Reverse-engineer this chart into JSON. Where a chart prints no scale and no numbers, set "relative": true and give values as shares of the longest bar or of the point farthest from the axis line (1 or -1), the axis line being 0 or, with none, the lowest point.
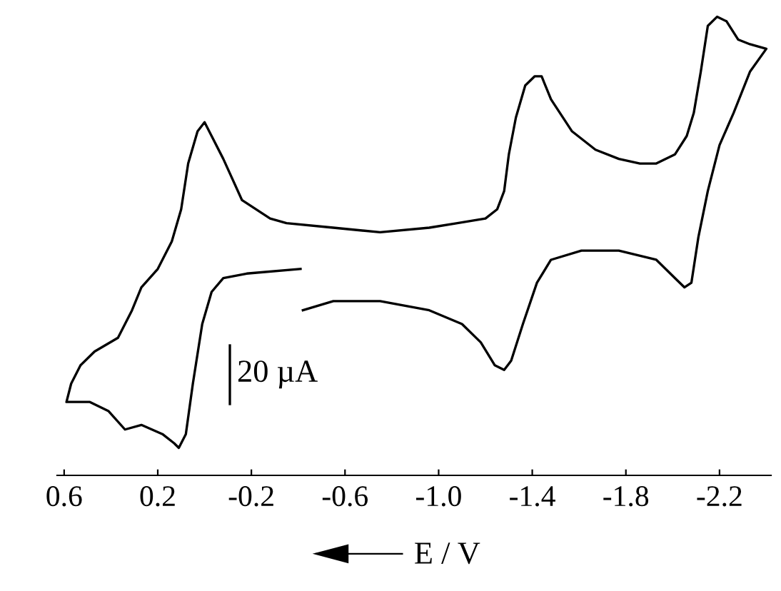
{
  "chart_data": {
    "type": "line",
    "relative": true,
    "xlabel": "E / V",
    "xlim": [
      0.63,
      -2.42
    ],
    "xticks": [
      {
        "value": 0.6,
        "label": "0.6"
      },
      {
        "value": 0.2,
        "label": "0.2"
      },
      {
        "value": -0.2,
        "label": "-0.2"
      },
      {
        "value": -0.6,
        "label": "-0.6"
      },
      {
        "value": -1.0,
        "label": "-1.0"
      },
      {
        "value": -1.4,
        "label": "-1.4"
      },
      {
        "value": -1.8,
        "label": "-1.8"
      },
      {
        "value": -2.2,
        "label": "-2.2"
      }
    ],
    "tick_labels": "x",
    "grid": false,
    "legend": false,
    "marker": "none",
    "line_style": "solid",
    "annotations": [
      "20 µA"
    ],
    "series": [
      {
        "color": "#000000",
        "x": [
          -0.42,
          -0.55,
          -0.75,
          -0.96,
          -1.1,
          -1.18,
          -1.24,
          -1.28,
          -1.31,
          -1.36,
          -1.42,
          -1.48,
          -1.61,
          -1.77,
          -1.93,
          -2.01,
          -2.05,
          -2.08,
          -2.11,
          -2.15,
          -2.2,
          -2.26,
          -2.33,
          -2.4,
          -2.33,
          -2.28,
          -2.23,
          -2.19,
          -2.15,
          -2.12,
          -2.09,
          -2.06,
          -2.01,
          -1.93,
          -1.86,
          -1.77,
          -1.67,
          -1.57,
          -1.48,
          -1.44,
          -1.41,
          -1.37,
          -1.33,
          -1.3,
          -1.28,
          -1.25,
          -1.2,
          -1.08,
          -0.96,
          -0.75,
          -0.55,
          -0.35,
          -0.28,
          -0.16,
          -0.08,
          -0.03,
          0.0,
          0.03,
          0.07,
          0.1,
          0.14,
          0.2,
          0.27,
          0.31,
          0.37,
          0.47,
          0.53,
          0.57,
          0.59,
          0.49,
          0.41,
          0.34,
          0.27,
          0.18,
          0.13,
          0.11,
          0.08,
          0.05,
          0.01,
          -0.03,
          -0.08,
          -0.18,
          -0.41
        ],
        "values": [
          0.36,
          0.38,
          0.38,
          0.36,
          0.33,
          0.29,
          0.24,
          0.23,
          0.25,
          0.33,
          0.42,
          0.47,
          0.49,
          0.49,
          0.47,
          0.43,
          0.41,
          0.42,
          0.52,
          0.62,
          0.72,
          0.79,
          0.88,
          0.93,
          0.94,
          0.95,
          0.99,
          1.0,
          0.98,
          0.88,
          0.79,
          0.74,
          0.7,
          0.68,
          0.68,
          0.69,
          0.71,
          0.75,
          0.82,
          0.87,
          0.87,
          0.85,
          0.78,
          0.7,
          0.62,
          0.58,
          0.56,
          0.55,
          0.54,
          0.53,
          0.54,
          0.55,
          0.56,
          0.6,
          0.69,
          0.74,
          0.77,
          0.75,
          0.68,
          0.58,
          0.51,
          0.45,
          0.41,
          0.36,
          0.3,
          0.27,
          0.24,
          0.2,
          0.16,
          0.16,
          0.14,
          0.1,
          0.11,
          0.09,
          0.07,
          0.06,
          0.09,
          0.2,
          0.33,
          0.4,
          0.43,
          0.44,
          0.45
        ]
      }
    ]
  }
}
